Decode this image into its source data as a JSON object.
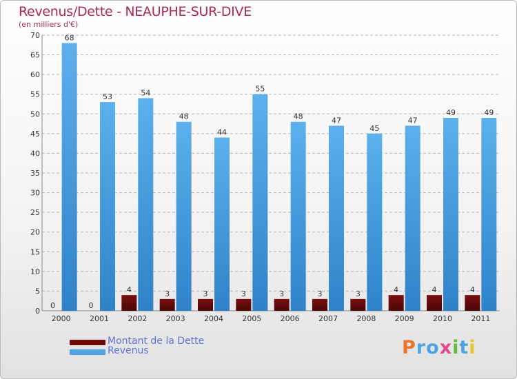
{
  "chart_data": {
    "type": "bar",
    "title": "Revenus/Dette - NEAUPHE-SUR-DIVE",
    "subtitle": "(en milliers d'€)",
    "categories": [
      "2000",
      "2001",
      "2002",
      "2003",
      "2004",
      "2005",
      "2006",
      "2007",
      "2008",
      "2009",
      "2010",
      "2011"
    ],
    "series": [
      {
        "name": "Montant de la Dette",
        "color": "#6e0c0c",
        "values": [
          0,
          0,
          4,
          3,
          3,
          3,
          3,
          3,
          3,
          4,
          4,
          4
        ]
      },
      {
        "name": "Revenus",
        "color": "#4fa3e3",
        "values": [
          68,
          53,
          54,
          48,
          44,
          55,
          48,
          47,
          45,
          47,
          49,
          49
        ]
      }
    ],
    "ylim": [
      0,
      70
    ],
    "yticks": [
      0,
      5,
      10,
      15,
      20,
      25,
      30,
      35,
      40,
      45,
      50,
      55,
      60,
      65,
      70
    ],
    "grid": true,
    "legend": "bottom-left"
  },
  "logo": {
    "text": "Proxiti",
    "colors": [
      "#e8762d",
      "#4fa3e3",
      "#4fa3e3",
      "#e14b8d",
      "#66b83a",
      "#4fa3e3",
      "#e8c52d"
    ]
  }
}
